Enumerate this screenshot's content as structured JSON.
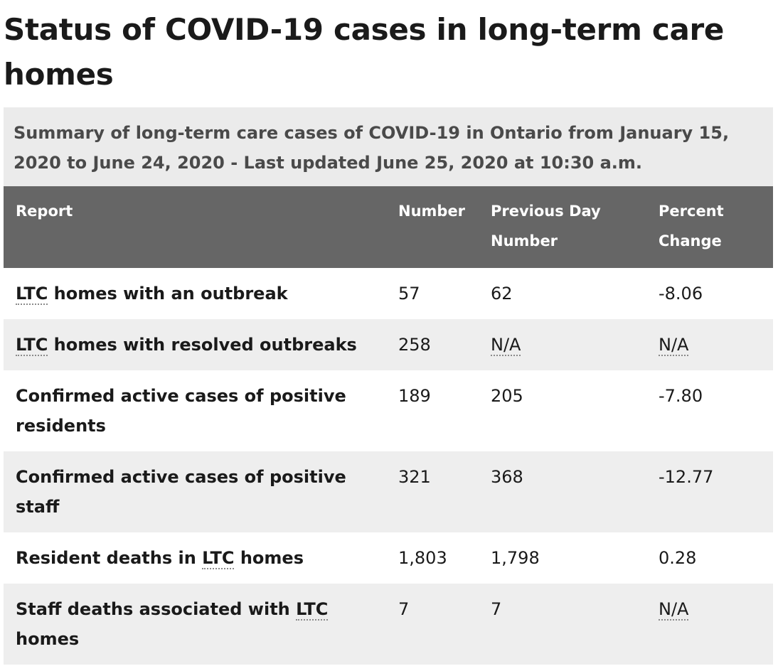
{
  "page": {
    "title": "Status of COVID-19 cases in long-term care homes"
  },
  "table": {
    "caption": "Summary of long-term care cases of COVID-19 in Ontario from January 15, 2020 to June 24, 2020 - Last updated June 25, 2020 at 10:30 a.m.",
    "headers": {
      "report": "Report",
      "number": "Number",
      "previous": "Previous Day Number",
      "percent": "Percent Change"
    },
    "rows": [
      {
        "pre": "",
        "abbr": "LTC",
        "post": " homes with an outbreak",
        "number": "57",
        "previous": "62",
        "percent": "-8.06"
      },
      {
        "pre": "",
        "abbr": "LTC",
        "post": " homes with resolved outbreaks",
        "number": "258",
        "previous": "N/A",
        "percent": "N/A"
      },
      {
        "label": "Confirmed active cases of positive residents",
        "number": "189",
        "previous": "205",
        "percent": "-7.80"
      },
      {
        "label": "Confirmed active cases of positive staff",
        "number": "321",
        "previous": "368",
        "percent": "-12.77"
      },
      {
        "pre": "Resident deaths in ",
        "abbr": "LTC",
        "post": " homes",
        "number": "1,803",
        "previous": "1,798",
        "percent": "0.28"
      },
      {
        "pre": "Staff deaths associated with ",
        "abbr": "LTC",
        "post": " homes",
        "number": "7",
        "previous": "7",
        "percent": "N/A"
      }
    ]
  }
}
